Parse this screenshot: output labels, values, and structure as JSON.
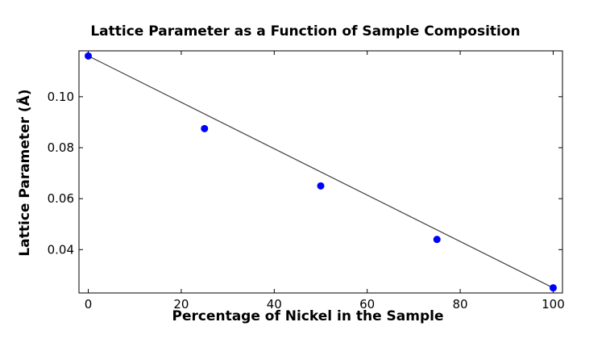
{
  "chart_data": {
    "type": "scatter",
    "title": "Lattice Parameter as a Function of Sample Composition",
    "xlabel": "Percentage of Nickel in the Sample",
    "ylabel": "Lattice Parameter (Å)",
    "xlim": [
      -2,
      102
    ],
    "ylim": [
      0.023,
      0.118
    ],
    "x_ticks": [
      0,
      20,
      40,
      60,
      80,
      100
    ],
    "x_tick_labels": [
      "0",
      "20",
      "40",
      "60",
      "80",
      "100"
    ],
    "y_ticks": [
      0.04,
      0.06,
      0.08,
      0.1
    ],
    "y_tick_labels": [
      "0.04",
      "0.06",
      "0.08",
      "0.10"
    ],
    "grid": false,
    "series": [
      {
        "type": "scatter",
        "x": [
          0,
          25,
          50,
          75,
          100
        ],
        "y": [
          0.116,
          0.0875,
          0.065,
          0.044,
          0.025
        ],
        "color": "#0000ff"
      },
      {
        "type": "line",
        "x": [
          0,
          100
        ],
        "y": [
          0.116,
          0.025
        ],
        "color": "#404040"
      }
    ]
  }
}
